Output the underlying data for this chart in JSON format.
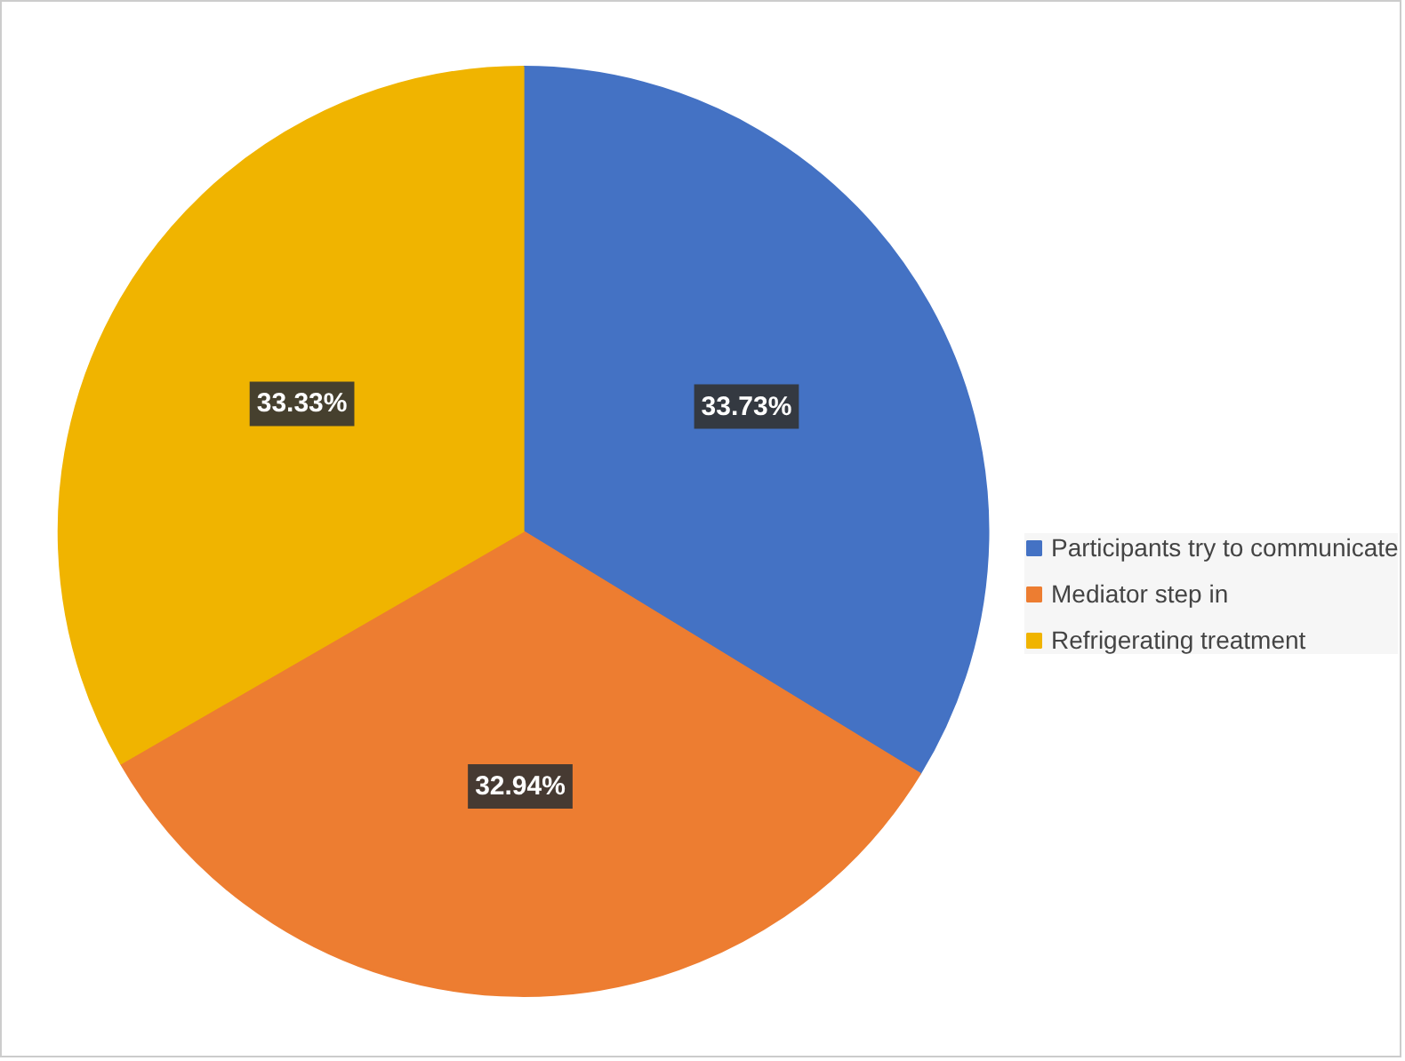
{
  "chart_data": {
    "type": "pie",
    "categories": [
      "Participants try to communicate",
      "Mediator step in",
      "Refrigerating treatment"
    ],
    "values": [
      33.73,
      32.94,
      33.33
    ],
    "colors": [
      "#4472c4",
      "#ed7d31",
      "#f0b400"
    ],
    "value_labels": [
      "33.73%",
      "32.94%",
      "33.33%"
    ],
    "legend": "right"
  }
}
